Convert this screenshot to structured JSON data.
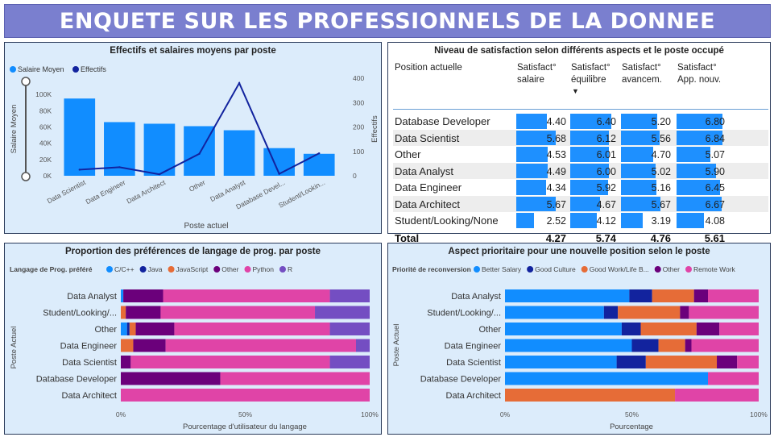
{
  "title": "ENQUETE SUR LES PROFESSIONNELS DE LA DONNEE",
  "colors": {
    "salary": "#118dff",
    "effectifs": "#12239e",
    "bar": "#1e90ff",
    "banner": "#7a7fcf"
  },
  "panel1": {
    "title": "Effectifs et salaires moyens par poste",
    "legend_salary": "Salaire Moyen",
    "legend_effectifs": "Effectifs",
    "xlabel": "Poste actuel",
    "ylabel_left": "Salaire Moyen",
    "ylabel_right": "Effectifs"
  },
  "panel2": {
    "title": "Niveau de satisfaction selon différents aspects et le poste occupé",
    "col0": "Position actuelle",
    "col1a": "Satisfact°",
    "col1b": "salaire",
    "col2a": "Satisfact°",
    "col2b": "équilibre",
    "sort_arrow": "▼",
    "col3a": "Satisfact°",
    "col3b": "avancem.",
    "col4a": "Satisfact°",
    "col4b": "App. nouv.",
    "total_label": "Total",
    "totals": [
      "4.27",
      "5.74",
      "4.76",
      "5.61"
    ],
    "scale_max": 7.2,
    "rows": [
      {
        "name": "Database Developer",
        "v": [
          "4.40",
          "6.40",
          "5.20",
          "6.80"
        ]
      },
      {
        "name": "Data Scientist",
        "v": [
          "5.68",
          "6.12",
          "5.56",
          "6.84"
        ]
      },
      {
        "name": "Other",
        "v": [
          "4.53",
          "6.01",
          "4.70",
          "5.07"
        ]
      },
      {
        "name": "Data Analyst",
        "v": [
          "4.49",
          "6.00",
          "5.02",
          "5.90"
        ]
      },
      {
        "name": "Data Engineer",
        "v": [
          "4.34",
          "5.92",
          "5.16",
          "6.45"
        ]
      },
      {
        "name": "Data Architect",
        "v": [
          "5.67",
          "4.67",
          "5.67",
          "6.67"
        ]
      },
      {
        "name": "Student/Looking/None",
        "v": [
          "2.52",
          "4.12",
          "3.19",
          "4.08"
        ]
      }
    ]
  },
  "panel3": {
    "title": "Proportion des préférences de langage de prog. par poste",
    "legend_title": "Langage de Prog. préféré",
    "xlabel": "Pourcentage d'utilisateur du langage",
    "ylabel": "Poste Actuel"
  },
  "panel4": {
    "title": "Aspect prioritaire pour une nouvelle position selon le poste",
    "legend_title": "Priorité de reconversion",
    "xlabel": "Pourcentage",
    "ylabel": "Poste Actuel"
  },
  "chart_data": [
    {
      "type": "bar",
      "title": "Effectifs et salaires moyens par poste",
      "categories": [
        "Data Scientist",
        "Data Engineer",
        "Data Architect",
        "Other",
        "Data Analyst",
        "Database Devel...",
        "Student/Lookin..."
      ],
      "series": [
        {
          "name": "Salaire Moyen",
          "axis": "left",
          "type": "bar",
          "values": [
            95000,
            66000,
            64000,
            61000,
            56000,
            34000,
            27000
          ]
        },
        {
          "name": "Effectifs",
          "axis": "right",
          "type": "line",
          "values": [
            25,
            35,
            6,
            90,
            380,
            8,
            92
          ]
        }
      ],
      "y_left": {
        "range": [
          0,
          120000
        ],
        "ticks": [
          "0K",
          "20K",
          "40K",
          "60K",
          "80K",
          "100K"
        ],
        "tick_values": [
          0,
          20000,
          40000,
          60000,
          80000,
          100000
        ]
      },
      "y_right": {
        "range": [
          0,
          400
        ],
        "ticks": [
          "0",
          "100",
          "200",
          "300",
          "400"
        ],
        "tick_values": [
          0,
          100,
          200,
          300,
          400
        ]
      },
      "xlabel": "Poste actuel",
      "ylabel": "Salaire Moyen",
      "ylabel_right": "Effectifs",
      "legend": "top-left"
    },
    {
      "type": "table",
      "title": "Niveau de satisfaction selon différents aspects et le poste occupé",
      "columns": [
        "Position actuelle",
        "Satisfact° salaire",
        "Satisfact° équilibre",
        "Satisfact° avancem.",
        "Satisfact° App. nouv."
      ]
    },
    {
      "type": "bar",
      "orientation": "horizontal-stacked-100",
      "title": "Proportion des préférences de langage de prog. par poste",
      "categories": [
        "Data Analyst",
        "Student/Looking/...",
        "Other",
        "Data Engineer",
        "Data Scientist",
        "Database Developer",
        "Data Architect"
      ],
      "series": [
        {
          "name": "C/C++",
          "color": "#118dff",
          "values": [
            1,
            0,
            2.5,
            0,
            0,
            0,
            0
          ]
        },
        {
          "name": "Java",
          "color": "#12239e",
          "values": [
            0,
            0,
            1,
            0,
            0,
            0,
            0
          ]
        },
        {
          "name": "JavaScript",
          "color": "#e66c37",
          "values": [
            0,
            2,
            2.5,
            5,
            0,
            0,
            0
          ]
        },
        {
          "name": "Other",
          "color": "#6b007b",
          "values": [
            16,
            14,
            15.5,
            13,
            4,
            40,
            0
          ]
        },
        {
          "name": "Python",
          "color": "#e044a7",
          "values": [
            67,
            62,
            62.5,
            76.5,
            80,
            60,
            100
          ]
        },
        {
          "name": "R",
          "color": "#744ec2",
          "values": [
            16,
            22,
            16,
            5.5,
            16,
            0,
            0
          ]
        }
      ],
      "x_ticks": [
        "0%",
        "50%",
        "100%"
      ],
      "xlabel": "Pourcentage d'utilisateur du langage",
      "ylabel": "Poste Actuel",
      "legend": "top"
    },
    {
      "type": "bar",
      "orientation": "horizontal-stacked-100",
      "title": "Aspect prioritaire pour une nouvelle position selon le poste",
      "categories": [
        "Data Analyst",
        "Student/Looking/...",
        "Other",
        "Data Engineer",
        "Data Scientist",
        "Database Developer",
        "Data Architect"
      ],
      "series": [
        {
          "name": "Better Salary",
          "color": "#118dff",
          "values": [
            49,
            39,
            46,
            50,
            44,
            80,
            0
          ]
        },
        {
          "name": "Good Culture",
          "color": "#12239e",
          "values": [
            9,
            5.5,
            7.5,
            10.5,
            11.5,
            0,
            0
          ]
        },
        {
          "name": "Good Work/Life B...",
          "color": "#e66c37",
          "values": [
            16.5,
            24.5,
            22,
            10.5,
            28,
            0,
            67
          ]
        },
        {
          "name": "Other",
          "color": "#6b007b",
          "values": [
            5.5,
            3.5,
            9,
            2.5,
            8,
            0,
            0
          ]
        },
        {
          "name": "Remote Work",
          "color": "#e044a7",
          "values": [
            20,
            27.5,
            15.5,
            26.5,
            8.5,
            20,
            33
          ]
        }
      ],
      "x_ticks": [
        "0%",
        "50%",
        "100%"
      ],
      "xlabel": "Pourcentage",
      "ylabel": "Poste Actuel",
      "legend": "top"
    }
  ]
}
